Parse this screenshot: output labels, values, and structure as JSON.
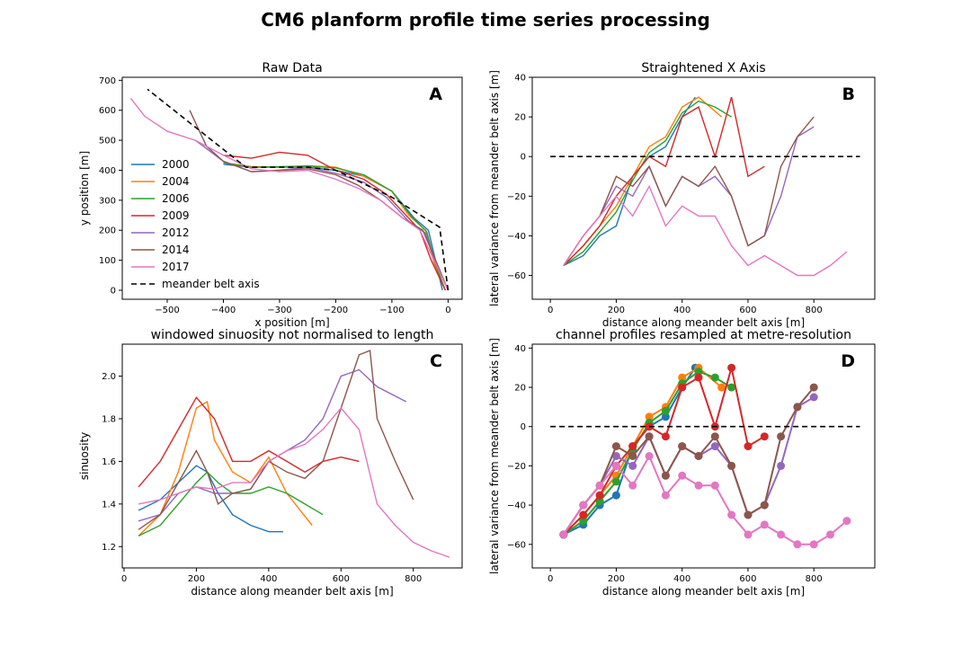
{
  "figure_title": "CM6 planform profile time series processing",
  "colors": {
    "2000": "#1f77b4",
    "2004": "#ff7f0e",
    "2006": "#2ca02c",
    "2009": "#d62728",
    "2012": "#9467bd",
    "2014": "#8c564b",
    "2017": "#e377c2",
    "axis": "#000000"
  },
  "chart_data": [
    {
      "panel": "A",
      "type": "line",
      "title": "Raw Data",
      "xlabel": "x position [m]",
      "ylabel": "y position [m]",
      "xlim": [
        -580,
        25
      ],
      "ylim": [
        -30,
        710
      ],
      "xticks": [
        -500,
        -400,
        -300,
        -200,
        -100,
        0
      ],
      "yticks": [
        0,
        100,
        200,
        300,
        400,
        500,
        600,
        700
      ],
      "legend": {
        "placement": "lower-left",
        "entries": [
          "2000",
          "2004",
          "2006",
          "2009",
          "2012",
          "2014",
          "2017",
          "meander belt axis"
        ]
      },
      "series": [
        {
          "name": "2000",
          "x": [
            -10,
            -20,
            -35,
            -60,
            -100,
            -150,
            -200,
            -250,
            -300,
            -350,
            -400
          ],
          "y": [
            0,
            80,
            200,
            240,
            330,
            380,
            400,
            410,
            410,
            410,
            420
          ]
        },
        {
          "name": "2004",
          "x": [
            -5,
            -25,
            -40,
            -70,
            -100,
            -150,
            -200,
            -250,
            -300,
            -350,
            -400
          ],
          "y": [
            0,
            90,
            200,
            250,
            330,
            380,
            410,
            415,
            410,
            412,
            425
          ]
        },
        {
          "name": "2006",
          "x": [
            -5,
            -22,
            -38,
            -65,
            -100,
            -150,
            -200,
            -250,
            -300,
            -350,
            -400
          ],
          "y": [
            0,
            85,
            195,
            245,
            330,
            385,
            408,
            414,
            412,
            410,
            425
          ]
        },
        {
          "name": "2009",
          "x": [
            -5,
            -30,
            -50,
            -80,
            -110,
            -150,
            -200,
            -250,
            -300,
            -350,
            -400
          ],
          "y": [
            0,
            100,
            200,
            260,
            320,
            370,
            400,
            450,
            460,
            440,
            450
          ]
        },
        {
          "name": "2012",
          "x": [
            0,
            -20,
            -40,
            -70,
            -110,
            -150,
            -200,
            -250,
            -300,
            -350,
            -400,
            -450
          ],
          "y": [
            0,
            80,
            190,
            230,
            310,
            360,
            390,
            410,
            400,
            395,
            430,
            500
          ]
        },
        {
          "name": "2014",
          "x": [
            0,
            -20,
            -45,
            -80,
            -120,
            -160,
            -200,
            -250,
            -300,
            -350,
            -400,
            -430,
            -460
          ],
          "y": [
            0,
            90,
            200,
            240,
            300,
            350,
            385,
            405,
            400,
            395,
            430,
            480,
            600
          ]
        },
        {
          "name": "2017",
          "x": [
            0,
            -25,
            -50,
            -80,
            -120,
            -160,
            -200,
            -250,
            -300,
            -350,
            -400,
            -450,
            -500,
            -540,
            -565
          ],
          "y": [
            0,
            100,
            200,
            240,
            300,
            340,
            370,
            400,
            395,
            405,
            450,
            500,
            530,
            580,
            640
          ]
        },
        {
          "name": "meander belt axis",
          "x": [
            0,
            -15,
            -100,
            -200,
            -250,
            -360,
            -535
          ],
          "y": [
            0,
            210,
            310,
            400,
            410,
            410,
            670
          ],
          "style": "dashed"
        }
      ]
    },
    {
      "panel": "B",
      "type": "line",
      "title": "Straightened X Axis",
      "xlabel": "distance along meander belt axis [m]",
      "ylabel": "lateral variance from meander belt axis [m]",
      "xlim": [
        -55,
        985
      ],
      "ylim": [
        -72,
        40
      ],
      "xticks": [
        0,
        200,
        400,
        600,
        800
      ],
      "yticks": [
        -60,
        -40,
        -20,
        0,
        20,
        40
      ],
      "series": [
        {
          "name": "2000",
          "x": [
            40,
            100,
            150,
            200,
            250,
            300,
            350,
            400,
            440
          ],
          "y": [
            -55,
            -50,
            -40,
            -35,
            -10,
            0,
            5,
            20,
            30
          ]
        },
        {
          "name": "2004",
          "x": [
            40,
            100,
            150,
            200,
            250,
            300,
            350,
            400,
            450,
            520
          ],
          "y": [
            -55,
            -45,
            -35,
            -25,
            -10,
            5,
            10,
            25,
            30,
            20
          ]
        },
        {
          "name": "2006",
          "x": [
            40,
            100,
            150,
            200,
            250,
            300,
            350,
            400,
            450,
            500,
            550
          ],
          "y": [
            -55,
            -48,
            -38,
            -28,
            -12,
            2,
            8,
            22,
            28,
            25,
            20
          ]
        },
        {
          "name": "2009",
          "x": [
            40,
            100,
            150,
            200,
            250,
            300,
            350,
            400,
            450,
            500,
            550,
            600,
            650
          ],
          "y": [
            -55,
            -45,
            -35,
            -20,
            -10,
            0,
            -5,
            20,
            25,
            0,
            30,
            -10,
            -5
          ]
        },
        {
          "name": "2012",
          "x": [
            40,
            100,
            150,
            200,
            250,
            300,
            350,
            400,
            450,
            500,
            550,
            600,
            650,
            700,
            750,
            800
          ],
          "y": [
            -55,
            -40,
            -30,
            -15,
            -20,
            -5,
            -25,
            -10,
            -15,
            -10,
            -20,
            -45,
            -40,
            -20,
            10,
            15
          ]
        },
        {
          "name": "2014",
          "x": [
            40,
            100,
            150,
            200,
            250,
            300,
            350,
            400,
            450,
            500,
            550,
            600,
            650,
            700,
            750,
            800
          ],
          "y": [
            -55,
            -40,
            -30,
            -10,
            -15,
            -5,
            -25,
            -10,
            -15,
            -5,
            -20,
            -45,
            -40,
            -5,
            10,
            20
          ]
        },
        {
          "name": "2017",
          "x": [
            40,
            100,
            150,
            200,
            250,
            300,
            350,
            400,
            450,
            500,
            550,
            600,
            650,
            700,
            750,
            800,
            850,
            900
          ],
          "y": [
            -55,
            -40,
            -30,
            -20,
            -30,
            -15,
            -35,
            -25,
            -30,
            -30,
            -45,
            -55,
            -50,
            -55,
            -60,
            -60,
            -55,
            -48
          ]
        },
        {
          "name": "meander belt axis",
          "x": [
            0,
            940
          ],
          "y": [
            0,
            0
          ],
          "style": "dashed"
        }
      ]
    },
    {
      "panel": "C",
      "type": "line",
      "title": "windowed sinuosity not normalised to length",
      "xlabel": "distance along meander belt axis [m]",
      "ylabel": "sinuosity",
      "xlim": [
        -5,
        935
      ],
      "ylim": [
        1.1,
        2.15
      ],
      "xticks": [
        0,
        200,
        400,
        600,
        800
      ],
      "yticks": [
        1.2,
        1.4,
        1.6,
        1.8,
        2.0
      ],
      "series": [
        {
          "name": "2000",
          "x": [
            40,
            100,
            150,
            200,
            230,
            260,
            300,
            350,
            400,
            440
          ],
          "y": [
            1.37,
            1.42,
            1.5,
            1.58,
            1.55,
            1.45,
            1.35,
            1.3,
            1.27,
            1.27
          ]
        },
        {
          "name": "2004",
          "x": [
            40,
            100,
            150,
            200,
            230,
            250,
            300,
            350,
            400,
            450,
            520
          ],
          "y": [
            1.25,
            1.35,
            1.55,
            1.85,
            1.88,
            1.7,
            1.55,
            1.5,
            1.62,
            1.45,
            1.3
          ]
        },
        {
          "name": "2006",
          "x": [
            40,
            100,
            150,
            200,
            230,
            260,
            300,
            350,
            400,
            450,
            500,
            550
          ],
          "y": [
            1.25,
            1.3,
            1.4,
            1.5,
            1.55,
            1.5,
            1.45,
            1.45,
            1.48,
            1.45,
            1.4,
            1.35
          ]
        },
        {
          "name": "2009",
          "x": [
            40,
            100,
            150,
            200,
            250,
            300,
            350,
            400,
            450,
            500,
            550,
            600,
            650
          ],
          "y": [
            1.48,
            1.6,
            1.75,
            1.9,
            1.8,
            1.6,
            1.6,
            1.65,
            1.6,
            1.55,
            1.6,
            1.62,
            1.6
          ]
        },
        {
          "name": "2012",
          "x": [
            40,
            100,
            150,
            200,
            250,
            300,
            350,
            400,
            450,
            500,
            550,
            600,
            650,
            700,
            780
          ],
          "y": [
            1.32,
            1.35,
            1.45,
            1.48,
            1.45,
            1.45,
            1.47,
            1.6,
            1.65,
            1.7,
            1.8,
            2.0,
            2.03,
            1.95,
            1.88
          ]
        },
        {
          "name": "2014",
          "x": [
            40,
            100,
            150,
            200,
            230,
            260,
            300,
            350,
            400,
            450,
            500,
            550,
            600,
            650,
            680,
            700,
            750,
            800
          ],
          "y": [
            1.28,
            1.35,
            1.5,
            1.65,
            1.55,
            1.4,
            1.45,
            1.47,
            1.6,
            1.55,
            1.52,
            1.6,
            1.85,
            2.1,
            2.12,
            1.8,
            1.6,
            1.42
          ]
        },
        {
          "name": "2017",
          "x": [
            40,
            100,
            150,
            200,
            250,
            300,
            350,
            400,
            450,
            500,
            550,
            600,
            650,
            700,
            750,
            800,
            850,
            900
          ],
          "y": [
            1.4,
            1.42,
            1.45,
            1.48,
            1.47,
            1.5,
            1.5,
            1.6,
            1.65,
            1.68,
            1.75,
            1.85,
            1.75,
            1.4,
            1.3,
            1.22,
            1.18,
            1.15
          ]
        }
      ]
    },
    {
      "panel": "D",
      "type": "scatter",
      "title": "channel profiles resampled at metre-resolution",
      "xlabel": "distance along meander belt axis [m]",
      "ylabel": "lateral variance from meander belt axis [m]",
      "xlim": [
        -55,
        985
      ],
      "ylim": [
        -72,
        42
      ],
      "xticks": [
        0,
        200,
        400,
        600,
        800
      ],
      "yticks": [
        -60,
        -40,
        -20,
        0,
        20,
        40
      ],
      "series": [
        {
          "name": "2000",
          "x": [
            40,
            100,
            150,
            200,
            250,
            300,
            350,
            400,
            440
          ],
          "y": [
            -55,
            -50,
            -40,
            -35,
            -10,
            0,
            5,
            20,
            30
          ]
        },
        {
          "name": "2004",
          "x": [
            40,
            100,
            150,
            200,
            250,
            300,
            350,
            400,
            450,
            520
          ],
          "y": [
            -55,
            -45,
            -35,
            -25,
            -10,
            5,
            10,
            25,
            30,
            20
          ]
        },
        {
          "name": "2006",
          "x": [
            40,
            100,
            150,
            200,
            250,
            300,
            350,
            400,
            450,
            500,
            550
          ],
          "y": [
            -55,
            -48,
            -38,
            -28,
            -12,
            2,
            8,
            22,
            28,
            25,
            20
          ]
        },
        {
          "name": "2009",
          "x": [
            40,
            100,
            150,
            200,
            250,
            300,
            350,
            400,
            450,
            500,
            550,
            600,
            650
          ],
          "y": [
            -55,
            -45,
            -35,
            -20,
            -10,
            0,
            -5,
            20,
            25,
            0,
            30,
            -10,
            -5
          ]
        },
        {
          "name": "2012",
          "x": [
            40,
            100,
            150,
            200,
            250,
            300,
            350,
            400,
            450,
            500,
            550,
            600,
            650,
            700,
            750,
            800
          ],
          "y": [
            -55,
            -40,
            -30,
            -15,
            -20,
            -5,
            -25,
            -10,
            -15,
            -10,
            -20,
            -45,
            -40,
            -20,
            10,
            15
          ]
        },
        {
          "name": "2014",
          "x": [
            40,
            100,
            150,
            200,
            250,
            300,
            350,
            400,
            450,
            500,
            550,
            600,
            650,
            700,
            750,
            800
          ],
          "y": [
            -55,
            -40,
            -30,
            -10,
            -15,
            -5,
            -25,
            -10,
            -15,
            -5,
            -20,
            -45,
            -40,
            -5,
            10,
            20
          ]
        },
        {
          "name": "2017",
          "x": [
            40,
            100,
            150,
            200,
            250,
            300,
            350,
            400,
            450,
            500,
            550,
            600,
            650,
            700,
            750,
            800,
            850,
            900
          ],
          "y": [
            -55,
            -40,
            -30,
            -20,
            -30,
            -15,
            -35,
            -25,
            -30,
            -30,
            -45,
            -55,
            -50,
            -55,
            -60,
            -60,
            -55,
            -48
          ]
        },
        {
          "name": "meander belt axis",
          "x": [
            0,
            940
          ],
          "y": [
            0,
            0
          ],
          "style": "dashed"
        }
      ]
    }
  ]
}
